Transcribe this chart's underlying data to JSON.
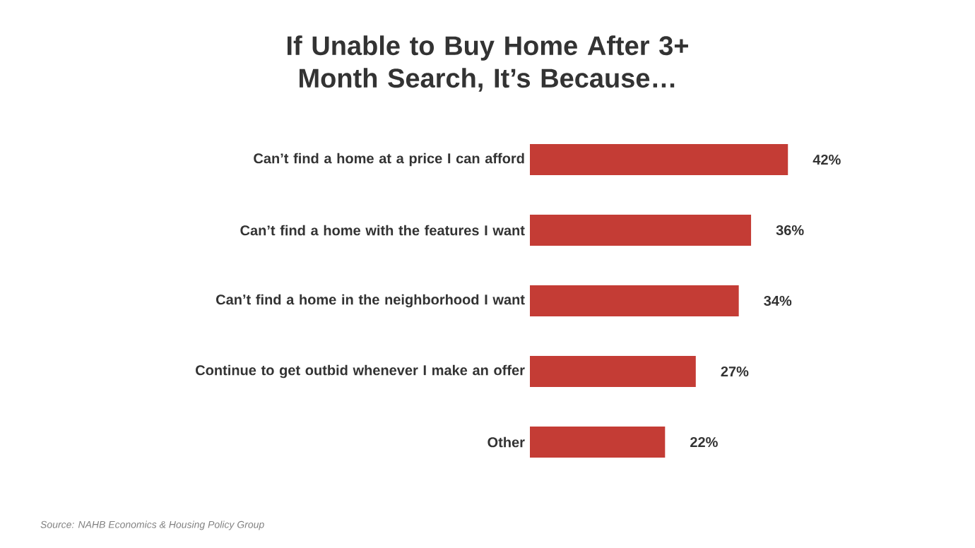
{
  "chart_data": {
    "type": "bar",
    "orientation": "horizontal",
    "title": "If Unable to Buy Home After 3+ Month Search, It’s Because…",
    "categories": [
      "Can’t find a home at a price I can afford",
      "Can’t find a home with the features I want",
      "Can’t find a home in the neighborhood I want",
      "Continue to get outbid whenever I make an offer",
      "Other"
    ],
    "values": [
      42,
      36,
      34,
      27,
      22
    ],
    "value_labels": [
      "42%",
      "36%",
      "34%",
      "27%",
      "22%"
    ],
    "color": "#c43c35",
    "annotations": [
      "Source: NAHB Economics & Housing Policy Group"
    ]
  }
}
